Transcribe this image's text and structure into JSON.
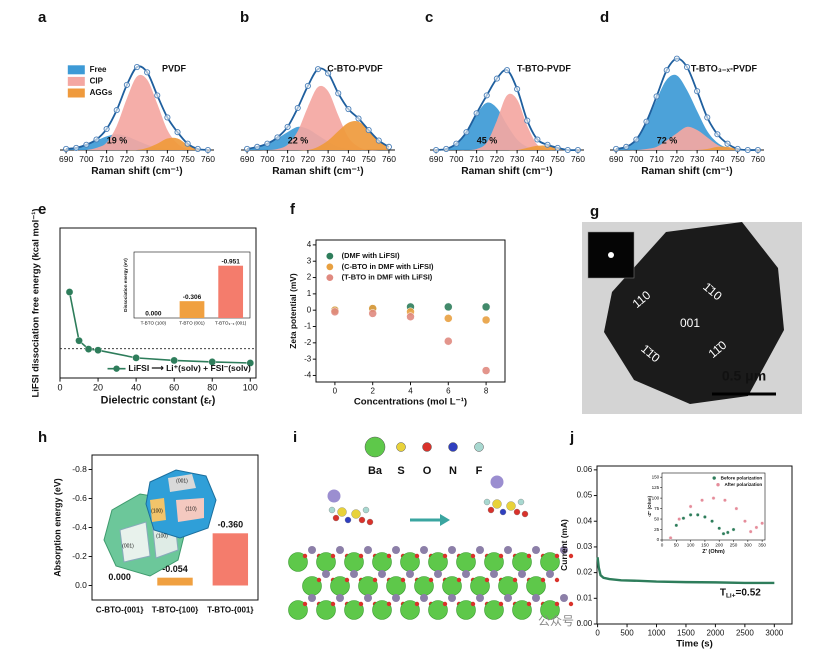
{
  "panel_labels": [
    "a",
    "b",
    "c",
    "d",
    "e",
    "f",
    "g",
    "h",
    "i",
    "j"
  ],
  "chart_data": [
    {
      "type": "area",
      "title": "PVDF",
      "annotation": "19 %",
      "legend": "upper left",
      "x": [
        690,
        695,
        700,
        705,
        710,
        715,
        720,
        725,
        730,
        735,
        740,
        745,
        750,
        755,
        760
      ],
      "xlim": [
        687,
        763
      ],
      "xticks": [
        690,
        700,
        710,
        720,
        730,
        740,
        750,
        760
      ],
      "xlabel": "Raman shift (cm⁻¹)",
      "series": [
        {
          "name": "Free",
          "color": "#3d9ad6",
          "values": [
            0.01,
            0.02,
            0.05,
            0.09,
            0.13,
            0.15,
            0.13,
            0.09,
            0.05,
            0.02,
            0.01,
            0,
            0,
            0,
            0
          ]
        },
        {
          "name": "CIP",
          "color": "#f4a7a2",
          "values": [
            0,
            0,
            0,
            0.02,
            0.07,
            0.23,
            0.49,
            0.7,
            0.67,
            0.44,
            0.19,
            0.06,
            0.01,
            0,
            0
          ]
        },
        {
          "name": "AGGs",
          "color": "#ef9a3c",
          "values": [
            0,
            0,
            0,
            0,
            0,
            0,
            0,
            0,
            0.02,
            0.06,
            0.11,
            0.11,
            0.05,
            0.01,
            0
          ]
        },
        {
          "color": "#1f5f9e",
          "markers": true,
          "values": [
            0.01,
            0.02,
            0.05,
            0.1,
            0.2,
            0.38,
            0.62,
            0.79,
            0.74,
            0.52,
            0.31,
            0.17,
            0.06,
            0.01,
            0
          ]
        }
      ]
    },
    {
      "type": "area",
      "title": "C-BTO-PVDF",
      "annotation": "22 %",
      "x": [
        690,
        695,
        700,
        705,
        710,
        715,
        720,
        725,
        730,
        735,
        740,
        745,
        750,
        755,
        760
      ],
      "xlim": [
        687,
        763
      ],
      "xticks": [
        690,
        700,
        710,
        720,
        730,
        740,
        750,
        760
      ],
      "xlabel": "Raman shift (cm⁻¹)",
      "series": [
        {
          "color": "#3d9ad6",
          "values": [
            0.01,
            0.03,
            0.06,
            0.11,
            0.17,
            0.22,
            0.2,
            0.14,
            0.08,
            0.03,
            0.01,
            0,
            0,
            0,
            0
          ]
        },
        {
          "color": "#f4a7a2",
          "values": [
            0,
            0,
            0,
            0.01,
            0.05,
            0.18,
            0.41,
            0.6,
            0.56,
            0.33,
            0.12,
            0.03,
            0,
            0,
            0
          ]
        },
        {
          "color": "#ef9a3c",
          "values": [
            0,
            0,
            0,
            0,
            0,
            0,
            0,
            0.03,
            0.09,
            0.18,
            0.26,
            0.27,
            0.19,
            0.09,
            0.03
          ]
        },
        {
          "color": "#1f5f9e",
          "markers": true,
          "values": [
            0.01,
            0.03,
            0.06,
            0.12,
            0.22,
            0.4,
            0.61,
            0.77,
            0.73,
            0.54,
            0.39,
            0.3,
            0.19,
            0.09,
            0.03
          ]
        }
      ]
    },
    {
      "type": "area",
      "title": "T-BTO-PVDF",
      "annotation": "45 %",
      "x": [
        690,
        695,
        700,
        705,
        710,
        715,
        720,
        725,
        730,
        735,
        740,
        745,
        750,
        755,
        760
      ],
      "xlim": [
        687,
        763
      ],
      "xticks": [
        690,
        700,
        710,
        720,
        730,
        740,
        750,
        760
      ],
      "xlabel": "Raman shift (cm⁻¹)",
      "series": [
        {
          "color": "#3d9ad6",
          "values": [
            0,
            0.01,
            0.06,
            0.17,
            0.34,
            0.45,
            0.4,
            0.24,
            0.1,
            0.03,
            0.01,
            0,
            0,
            0,
            0
          ]
        },
        {
          "color": "#f4a7a2",
          "values": [
            0,
            0,
            0,
            0,
            0.01,
            0.07,
            0.28,
            0.52,
            0.48,
            0.23,
            0.05,
            0.01,
            0,
            0,
            0
          ]
        },
        {
          "color": "#ef9a3c",
          "values": [
            0,
            0,
            0,
            0,
            0,
            0,
            0,
            0,
            0,
            0.02,
            0.04,
            0.04,
            0.02,
            0,
            0
          ]
        },
        {
          "color": "#1f5f9e",
          "markers": true,
          "values": [
            0,
            0.01,
            0.06,
            0.17,
            0.35,
            0.52,
            0.68,
            0.76,
            0.58,
            0.28,
            0.1,
            0.05,
            0.02,
            0,
            0
          ]
        }
      ]
    },
    {
      "type": "area",
      "title": "T-BTO₃₋ₓ-PVDF",
      "annotation": "72 %",
      "x": [
        690,
        695,
        700,
        705,
        710,
        715,
        720,
        725,
        730,
        735,
        740,
        745,
        750,
        755,
        760
      ],
      "xlim": [
        687,
        763
      ],
      "xticks": [
        690,
        700,
        710,
        720,
        730,
        740,
        750,
        760
      ],
      "xlabel": "Raman shift (cm⁻¹)",
      "series": [
        {
          "color": "#3d9ad6",
          "values": [
            0.01,
            0.03,
            0.1,
            0.26,
            0.48,
            0.67,
            0.71,
            0.57,
            0.37,
            0.18,
            0.07,
            0.02,
            0,
            0,
            0
          ]
        },
        {
          "color": "#f4a7a2",
          "values": [
            0,
            0,
            0,
            0.01,
            0.03,
            0.09,
            0.16,
            0.22,
            0.19,
            0.12,
            0.05,
            0.01,
            0,
            0,
            0
          ]
        },
        {
          "color": "#ef9a3c",
          "values": [
            0,
            0,
            0,
            0,
            0,
            0,
            0,
            0,
            0,
            0.01,
            0.03,
            0.03,
            0.01,
            0,
            0
          ]
        },
        {
          "color": "#1f5f9e",
          "markers": true,
          "values": [
            0.01,
            0.03,
            0.1,
            0.27,
            0.51,
            0.76,
            0.87,
            0.79,
            0.56,
            0.31,
            0.15,
            0.06,
            0.01,
            0,
            0
          ]
        }
      ]
    },
    {
      "type": "line",
      "x": [
        5,
        10,
        15,
        20,
        40,
        60,
        80,
        100
      ],
      "xlim": [
        0,
        103
      ],
      "ylim": [
        -8,
        33
      ],
      "xticks": [
        0,
        20,
        40,
        60,
        80,
        100
      ],
      "xlabel": "Dielectric constant (εᵣ)",
      "ylabel": "LiFSI dissociation free energy (kcal mol⁻¹)",
      "reference_line": 0,
      "legend": "lower right",
      "series": [
        {
          "name": "LiFSI ⟶ Li⁺(solv) + FSI⁻(solv)",
          "color": "#2e7d5b",
          "markers": true,
          "values": [
            15.5,
            2.2,
            -0.1,
            -0.4,
            -2.5,
            -3.2,
            -3.6,
            -3.9
          ]
        }
      ],
      "inset": {
        "type": "bar",
        "categories": [
          "T-BTO (100)",
          "T-BTO (001)",
          "T-BTO₃₋ₓ (001)"
        ],
        "values": [
          0,
          -0.306,
          -0.951
        ],
        "value_labels": [
          "0.000",
          "-0.306",
          "-0.951"
        ],
        "colors": [
          "#f0a040",
          "#f0a040",
          "#f47c6c"
        ],
        "ylim": [
          0,
          -1.2
        ],
        "ylabel": "Dissociation energy (eV)"
      }
    },
    {
      "type": "scatter",
      "x": [
        0,
        2,
        4,
        6,
        8
      ],
      "xlim": [
        -1,
        9
      ],
      "ylim": [
        -4.4,
        4.3
      ],
      "xticks": [
        0,
        2,
        4,
        6,
        8
      ],
      "yticks": [
        -4,
        -3,
        -2,
        -1,
        0,
        1,
        2,
        3,
        4
      ],
      "xlabel": "Concentrations (mol L⁻¹)",
      "ylabel": "Zeta potential (mV)",
      "legend": "upper left",
      "series": [
        {
          "name": "(DMF with LiFSI)",
          "color": "#2e7d5b",
          "values": [
            0,
            0.1,
            0.2,
            0.2,
            0.2
          ]
        },
        {
          "name": "(C-BTO in DMF with LiFSI)",
          "color": "#e8a040",
          "values": [
            0,
            0.1,
            -0.1,
            -0.5,
            -0.6
          ]
        },
        {
          "name": "(T-BTO in DMF with LiFSI)",
          "color": "#e08a80",
          "values": [
            -0.1,
            -0.2,
            -0.4,
            -1.9,
            -3.7
          ]
        }
      ]
    },
    {
      "type": "bar",
      "categories": [
        "C-BTO-{001}",
        "T-BTO-{100}",
        "T-BTO-{001}"
      ],
      "values": [
        0,
        -0.054,
        -0.36
      ],
      "value_labels": [
        "0.000",
        "-0.054",
        "-0.360"
      ],
      "colors": [
        "#5fbf8f",
        "#f0a040",
        "#f47c6c"
      ],
      "ylim": [
        0.1,
        -0.9
      ],
      "yticks": [
        {
          "value": 0,
          "label": "0.0"
        },
        -0.2,
        -0.4,
        -0.6,
        -0.8
      ],
      "ylabel": "Absorption energy (eV)",
      "annotations": [
        "(001)",
        "(100)",
        "(001)",
        "(100)",
        "(110)"
      ]
    },
    {
      "type": "line",
      "x": [
        0,
        20,
        50,
        100,
        200,
        400,
        700,
        1000,
        1500,
        2000,
        2500,
        3000
      ],
      "xlim": [
        -10,
        3300
      ],
      "ylim": [
        0,
        0.0615
      ],
      "xticks": [
        0,
        500,
        1000,
        1500,
        2000,
        2500,
        3000
      ],
      "yticks": [
        {
          "value": 0,
          "label": "0.00"
        },
        0.01,
        0.02,
        0.03,
        0.04,
        0.05,
        0.06
      ],
      "xlabel": "Time (s)",
      "ylabel": "Current (mA)",
      "annotation": [
        "T",
        "Li+",
        "=0.52"
      ],
      "series": [
        {
          "color": "#2e7d5b",
          "values": [
            0.026,
            0.022,
            0.019,
            0.018,
            0.0175,
            0.017,
            0.0168,
            0.0165,
            0.0163,
            0.0162,
            0.016,
            0.016
          ]
        }
      ],
      "inset": {
        "type": "line",
        "xlim": [
          0,
          360
        ],
        "ylim": [
          0,
          160
        ],
        "xticks": [
          0,
          50,
          100,
          150,
          200,
          250,
          300,
          350
        ],
        "yticks": [
          0,
          25,
          50,
          75,
          100,
          125,
          150
        ],
        "xlabel": "Z' (Ohm)",
        "ylabel": "-Z'' (Ohm)",
        "legend": "upper right",
        "series": [
          {
            "name": "Before polarization",
            "color": "#2e7d5b",
            "markers": true,
            "line": false,
            "x": [
              30,
              50,
              75,
              100,
              125,
              150,
              175,
              200,
              215,
              230,
              250
            ],
            "values": [
              5,
              35,
              52,
              60,
              60,
              55,
              45,
              28,
              15,
              18,
              25
            ]
          },
          {
            "name": "After polarization",
            "color": "#e58c9a",
            "markers": true,
            "line": false,
            "x": [
              30,
              60,
              100,
              140,
              180,
              220,
              260,
              290,
              310,
              330,
              350
            ],
            "values": [
              5,
              50,
              80,
              95,
              100,
              95,
              75,
              45,
              20,
              30,
              40
            ]
          }
        ]
      }
    }
  ],
  "tem_image": {
    "labels": [
      "110",
      "1̄10",
      "001",
      "1̄1̄0",
      "11̄0"
    ],
    "scale_bar": "0.5 μm"
  },
  "structure_diagram": {
    "atoms": [
      {
        "label": "Ba",
        "color": "#5ec84a"
      },
      {
        "label": "S",
        "color": "#e8d23a"
      },
      {
        "label": "O",
        "color": "#d9322b"
      },
      {
        "label": "N",
        "color": "#2f3fbf"
      },
      {
        "label": "F",
        "color": "#a8d8d0"
      }
    ]
  },
  "watermark": "公众号 ·"
}
